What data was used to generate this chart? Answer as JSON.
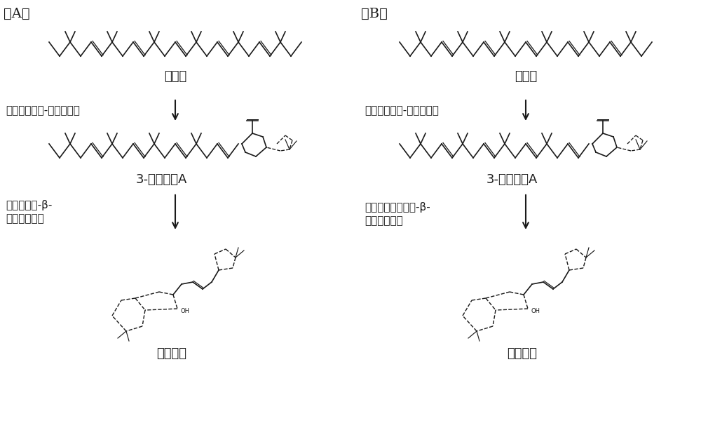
{
  "background": "#ffffff",
  "panel_A_label": "（A）",
  "panel_B_label": "（B）",
  "label_squalene": "角鲨烯",
  "label_3deoxa": "3-脱氧著醇A",
  "label_ambrein": "龙涎香醇",
  "label_enzyme1_A": "突变型角鲨烯-藿烯环化酶",
  "label_enzyme2_A": "四异戊烯基-β-\n姜黄烯环化酶",
  "label_enzyme1_B": "突变型角鲨烯-藿烯环化酶",
  "label_enzyme2_B": "突变型四异戊烯基-β-\n姜黄烯环化酶",
  "text_color": "#1a1a1a",
  "line_color": "#1a1a1a",
  "fontsize_label": 13,
  "fontsize_panel": 14,
  "fontsize_enzyme": 11
}
